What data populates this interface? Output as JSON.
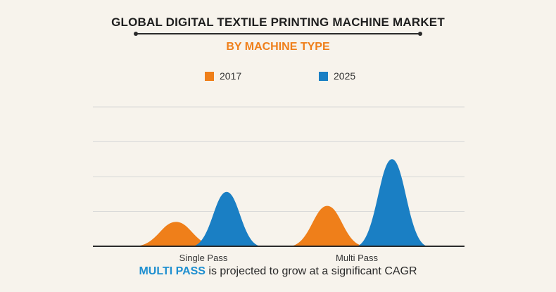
{
  "header": {
    "title": "GLOBAL DIGITAL TEXTILE PRINTING MACHINE MARKET",
    "subtitle": "BY MACHINE TYPE"
  },
  "colors": {
    "series_2017": "#ef7f1a",
    "series_2025": "#1a7fc4",
    "accent_text": "#1f8fd0"
  },
  "chart_data": {
    "type": "area",
    "categories": [
      "Single Pass",
      "Multi Pass"
    ],
    "series": [
      {
        "name": "2017",
        "values": [
          0.7,
          1.16
        ]
      },
      {
        "name": "2025",
        "values": [
          1.56,
          2.5
        ]
      }
    ],
    "ylim": [
      0,
      4
    ],
    "grid": true,
    "legend": "top"
  },
  "caption": {
    "highlight": "MULTI PASS",
    "rest": " is projected to grow at a significant CAGR"
  }
}
